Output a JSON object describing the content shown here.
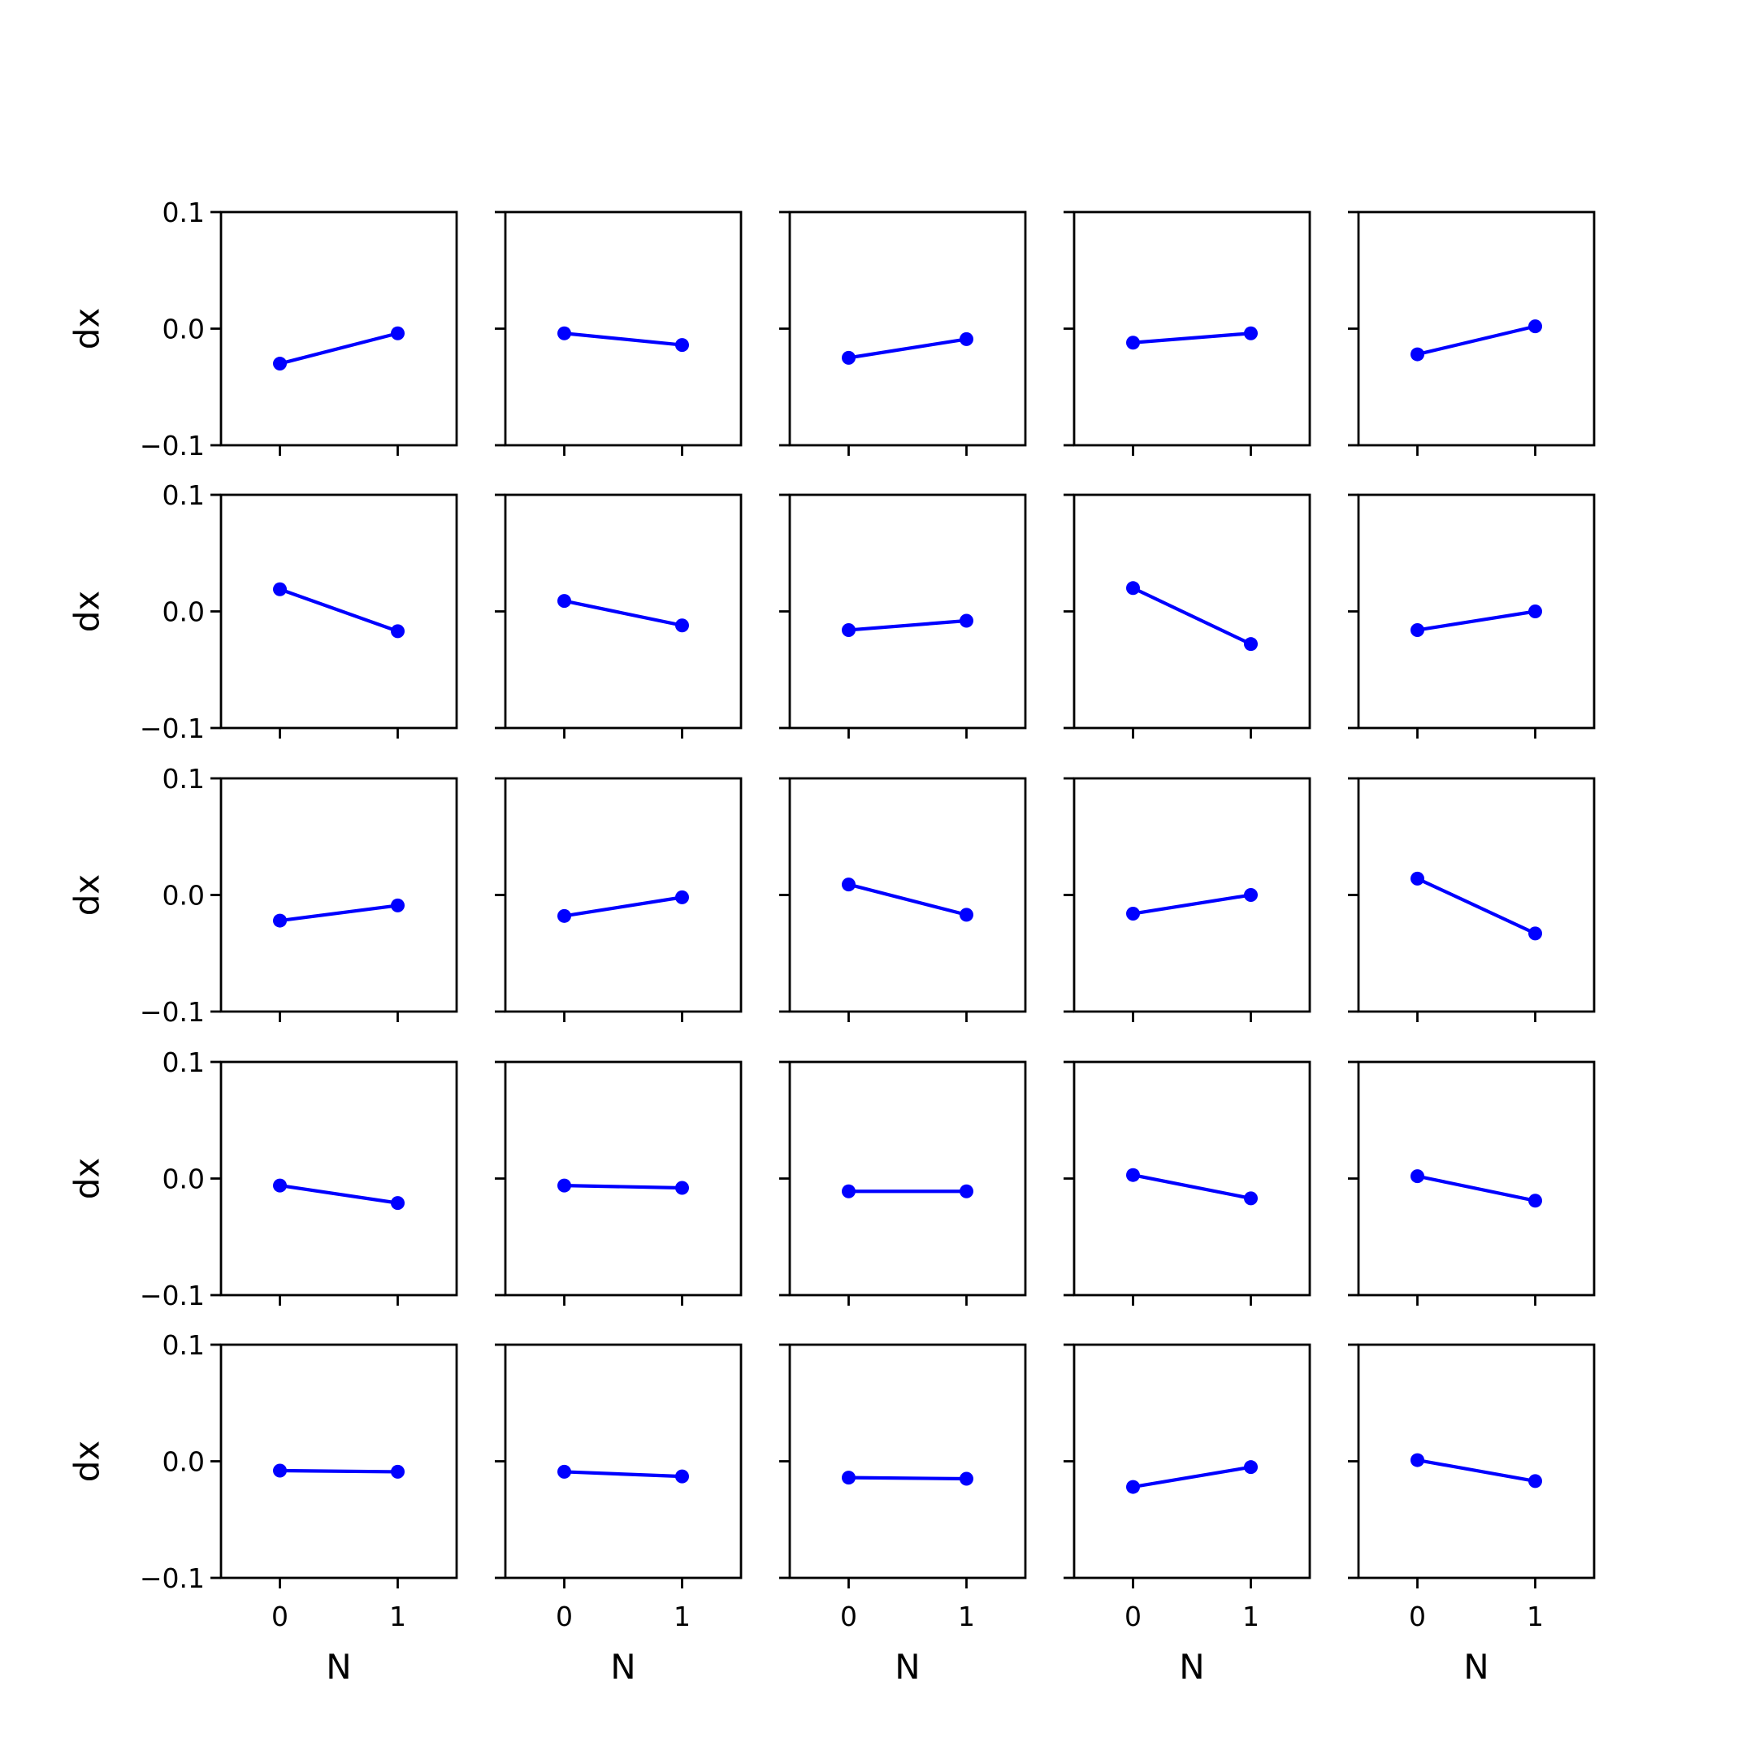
{
  "chart_data": {
    "type": "line",
    "layout": "5x5 grid of subplots, shared x and y axes",
    "xlabel": "N",
    "ylabel": "dx",
    "xticks": [
      "0",
      "1"
    ],
    "yticks": [
      "0.1",
      "0.0",
      "−0.1"
    ],
    "ylim": [
      -0.1,
      0.1
    ],
    "xlim": [
      -0.5,
      1.5
    ],
    "grid": false,
    "line_color": "#0000ff",
    "marker": "circle",
    "x": [
      0,
      1
    ],
    "panels": [
      [
        [
          -0.03,
          -0.004
        ],
        [
          -0.004,
          -0.014
        ],
        [
          -0.025,
          -0.009
        ],
        [
          -0.012,
          -0.004
        ],
        [
          -0.022,
          0.002
        ]
      ],
      [
        [
          0.019,
          -0.017
        ],
        [
          0.009,
          -0.012
        ],
        [
          -0.016,
          -0.008
        ],
        [
          0.02,
          -0.028
        ],
        [
          -0.016,
          0.0
        ]
      ],
      [
        [
          -0.022,
          -0.009
        ],
        [
          -0.018,
          -0.002
        ],
        [
          0.009,
          -0.017
        ],
        [
          -0.016,
          0.0
        ],
        [
          0.014,
          -0.033
        ]
      ],
      [
        [
          -0.006,
          -0.021
        ],
        [
          -0.006,
          -0.008
        ],
        [
          -0.011,
          -0.011
        ],
        [
          0.003,
          -0.017
        ],
        [
          0.002,
          -0.019
        ]
      ],
      [
        [
          -0.008,
          -0.009
        ],
        [
          -0.009,
          -0.013
        ],
        [
          -0.014,
          -0.015
        ],
        [
          -0.022,
          -0.005
        ],
        [
          0.001,
          -0.017
        ]
      ]
    ]
  }
}
